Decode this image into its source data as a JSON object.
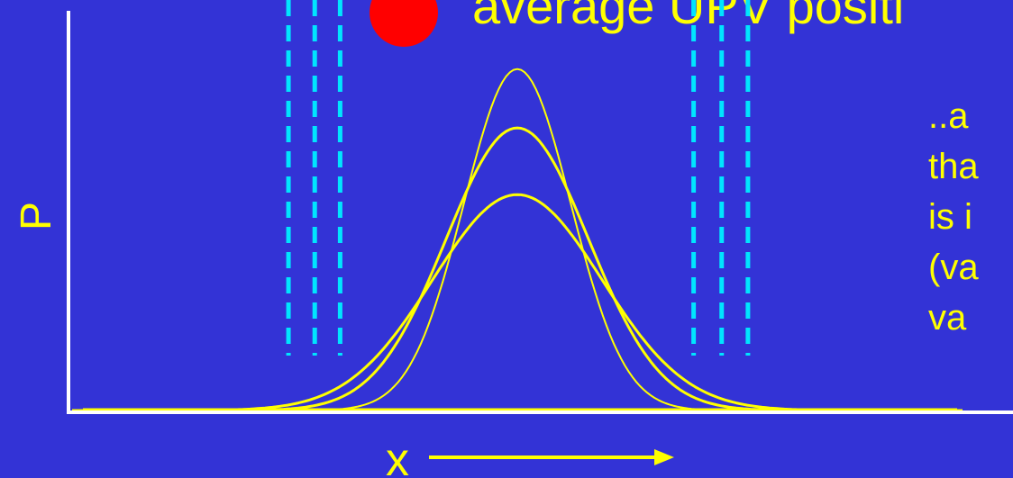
{
  "slide": {
    "title_partial": "average UPV positi",
    "caption_lines": [
      "..a",
      "tha",
      "is i",
      "(va",
      "va"
    ]
  },
  "colors": {
    "background": "#3333d6",
    "curve": "#ffff00",
    "marker": "#ff0000",
    "dashes": "#00e5ff",
    "axis": "#ffffff"
  },
  "chart_data": {
    "type": "line",
    "xlabel": "x",
    "ylabel": "P",
    "xlim": [
      -1,
      1
    ],
    "ylim": [
      0,
      1
    ],
    "grid": false,
    "center": 0,
    "series": [
      {
        "sigma": 0.12,
        "peak": 0.87,
        "stroke": 2
      },
      {
        "sigma": 0.16,
        "peak": 0.72,
        "stroke": 3
      },
      {
        "sigma": 0.19,
        "peak": 0.55,
        "stroke": 3
      }
    ],
    "dashed_lines_x": [
      -0.514,
      -0.455,
      -0.398,
      0.396,
      0.459,
      0.518
    ]
  }
}
